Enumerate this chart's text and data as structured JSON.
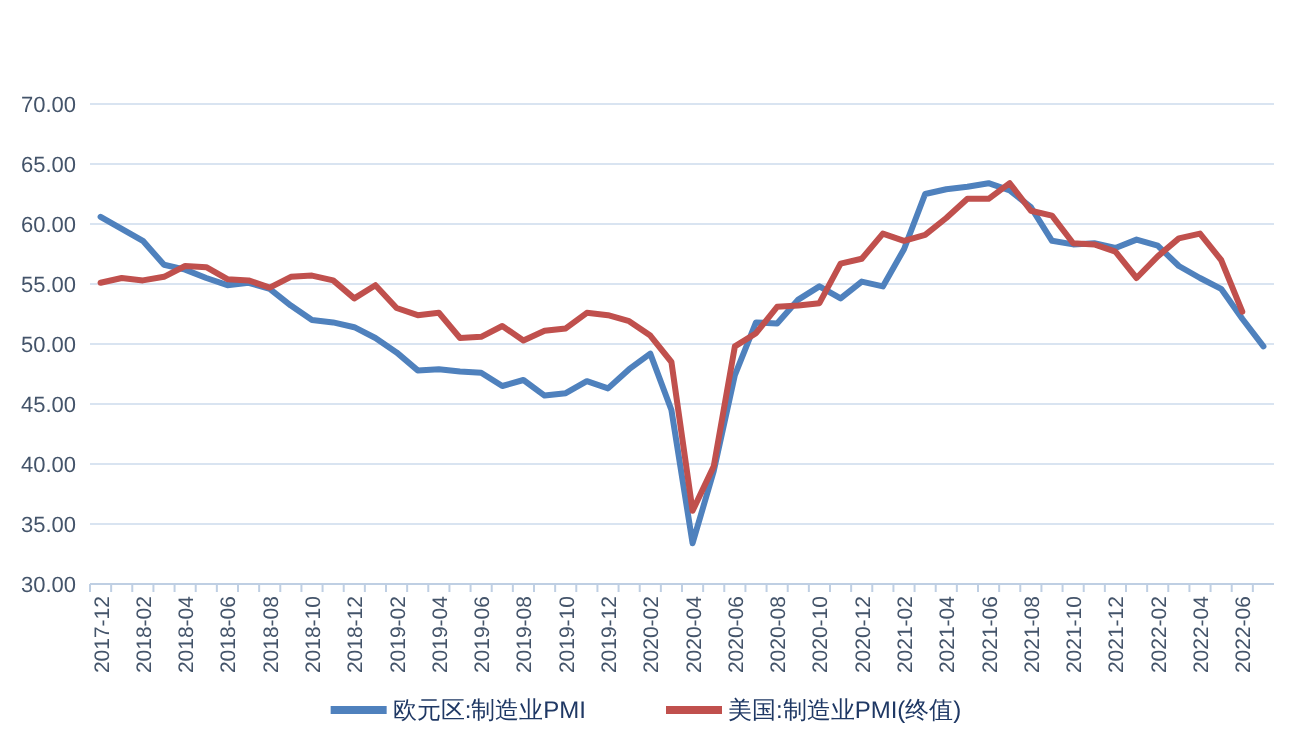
{
  "chart_data": {
    "type": "line",
    "categories": [
      "2017-12",
      null,
      "2018-02",
      null,
      "2018-04",
      null,
      "2018-06",
      null,
      "2018-08",
      null,
      "2018-10",
      null,
      "2018-12",
      null,
      "2019-02",
      null,
      "2019-04",
      null,
      "2019-06",
      null,
      "2019-08",
      null,
      "2019-10",
      null,
      "2019-12",
      null,
      "2020-02",
      null,
      "2020-04",
      null,
      "2020-06",
      null,
      "2020-08",
      null,
      "2020-10",
      null,
      "2020-12",
      null,
      "2021-02",
      null,
      "2021-04",
      null,
      "2021-06",
      null,
      "2021-08",
      null,
      "2021-10",
      null,
      "2021-12",
      null,
      "2022-02",
      null,
      "2022-04",
      null,
      "2022-06",
      null
    ],
    "series": [
      {
        "name": "欧元区:制造业PMI",
        "color": "#4f81bd",
        "values": [
          60.6,
          59.6,
          58.6,
          56.6,
          56.2,
          55.5,
          54.9,
          55.1,
          54.6,
          53.2,
          52.0,
          51.8,
          51.4,
          50.5,
          49.3,
          47.8,
          47.9,
          47.7,
          47.6,
          46.5,
          47.0,
          45.7,
          45.9,
          46.9,
          46.3,
          47.9,
          49.2,
          44.5,
          33.4,
          39.4,
          47.4,
          51.8,
          51.7,
          53.7,
          54.8,
          53.8,
          55.2,
          54.8,
          57.9,
          62.5,
          62.9,
          63.1,
          63.4,
          62.8,
          61.4,
          58.6,
          58.3,
          58.4,
          58.0,
          58.7,
          58.2,
          56.5,
          55.5,
          54.6,
          52.1,
          49.8
        ]
      },
      {
        "name": "美国:制造业PMI(终值)",
        "color": "#c0504d",
        "values": [
          55.1,
          55.5,
          55.3,
          55.6,
          56.5,
          56.4,
          55.4,
          55.3,
          54.7,
          55.6,
          55.7,
          55.3,
          53.8,
          54.9,
          53.0,
          52.4,
          52.6,
          50.5,
          50.6,
          51.5,
          50.3,
          51.1,
          51.3,
          52.6,
          52.4,
          51.9,
          50.7,
          48.5,
          36.1,
          39.8,
          49.8,
          50.9,
          53.1,
          53.2,
          53.4,
          56.7,
          57.1,
          59.2,
          58.6,
          59.1,
          60.5,
          62.1,
          62.1,
          63.4,
          61.1,
          60.7,
          58.4,
          58.3,
          57.7,
          55.5,
          57.3,
          58.8,
          59.2,
          57.0,
          52.7,
          null
        ]
      }
    ],
    "ylim": [
      30,
      70
    ],
    "yticks": [
      {
        "value": 30,
        "label": "30.00"
      },
      {
        "value": 35,
        "label": "35.00"
      },
      {
        "value": 40,
        "label": "40.00"
      },
      {
        "value": 45,
        "label": "45.00"
      },
      {
        "value": 50,
        "label": "50.00"
      },
      {
        "value": 55,
        "label": "55.00"
      },
      {
        "value": 60,
        "label": "60.00"
      },
      {
        "value": 65,
        "label": "65.00"
      },
      {
        "value": 70,
        "label": "70.00"
      }
    ],
    "grid": "y",
    "legend": "bottom",
    "marker": "none",
    "line_style": "solid"
  }
}
